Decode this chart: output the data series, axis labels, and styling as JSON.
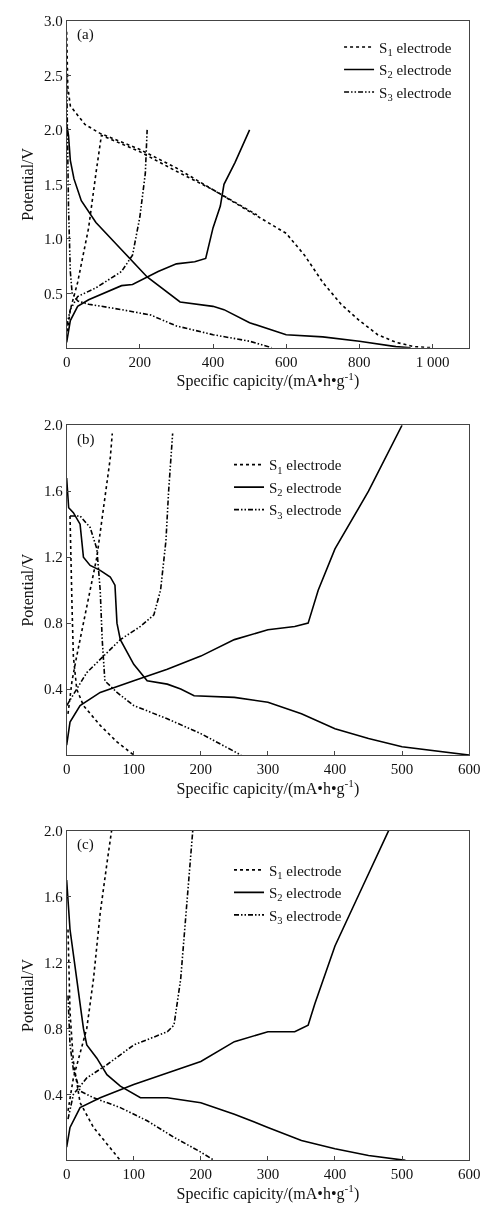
{
  "chart_data": [
    {
      "type": "line",
      "annotations": [
        "(a)"
      ],
      "xlabel": "Specific capicity/(mA•h•g$^{-1}$)",
      "ylabel": "Potential/V",
      "xlim": [
        0,
        1100
      ],
      "xticks": [
        0,
        200,
        400,
        600,
        800,
        {
          "value": 1000,
          "label": "1 000"
        }
      ],
      "ylim": [
        0,
        3.0
      ],
      "yticks": [
        {
          "value": 0.5,
          "label": "0.5"
        },
        {
          "value": 1.0,
          "label": "1.0"
        },
        {
          "value": 1.5,
          "label": "1.5"
        },
        {
          "value": 2.0,
          "label": "2.0"
        },
        {
          "value": 2.5,
          "label": "2.5"
        },
        {
          "value": 3.0,
          "label": "3.0"
        }
      ],
      "legend": "top right",
      "series": [
        {
          "name": "S$_{1}$ electrode",
          "color": "#000000",
          "line_style": "dotted",
          "x": [
            0,
            3,
            10,
            50,
            90,
            200,
            300,
            400,
            500,
            600,
            650,
            700,
            750,
            800,
            850,
            900,
            950,
            1000
          ],
          "values": [
            2.9,
            2.4,
            2.22,
            2.05,
            1.97,
            1.82,
            1.65,
            1.45,
            1.25,
            1.05,
            0.85,
            0.6,
            0.4,
            0.25,
            0.12,
            0.05,
            0.01,
            0.0
          ]
        },
        {
          "color": "#000000",
          "line_style": "dotted",
          "x": [
            2,
            10,
            30,
            60,
            80,
            95,
            200,
            300,
            400,
            520
          ],
          "values": [
            0.15,
            0.35,
            0.6,
            1.1,
            1.6,
            1.95,
            1.8,
            1.62,
            1.45,
            1.22
          ]
        },
        {
          "name": "S$_{2}$ electrode",
          "color": "#000000",
          "line_style": "solid",
          "x": [
            0,
            5,
            10,
            20,
            40,
            80,
            150,
            220,
            310,
            400,
            430,
            500,
            600,
            700,
            800,
            900,
            940
          ],
          "values": [
            2.05,
            1.95,
            1.72,
            1.55,
            1.35,
            1.15,
            0.9,
            0.65,
            0.42,
            0.38,
            0.35,
            0.23,
            0.12,
            0.1,
            0.06,
            0.01,
            0.0
          ]
        },
        {
          "color": "#000000",
          "line_style": "solid",
          "x": [
            0,
            10,
            30,
            60,
            150,
            180,
            250,
            300,
            350,
            380,
            400,
            420,
            430,
            460,
            500
          ],
          "values": [
            0.05,
            0.25,
            0.38,
            0.44,
            0.57,
            0.58,
            0.7,
            0.77,
            0.79,
            0.82,
            1.1,
            1.3,
            1.5,
            1.7,
            2.0
          ]
        },
        {
          "name": "S$_{3}$ electrode",
          "color": "#000000",
          "line_style": "dashdot",
          "x": [
            0,
            5,
            10,
            15,
            30,
            60,
            150,
            230,
            300,
            400,
            500,
            560
          ],
          "values": [
            2.5,
            1.3,
            0.7,
            0.5,
            0.43,
            0.4,
            0.35,
            0.3,
            0.2,
            0.12,
            0.06,
            0.0
          ]
        },
        {
          "color": "#000000",
          "line_style": "dashdot",
          "x": [
            0,
            10,
            30,
            80,
            150,
            180,
            200,
            215,
            220
          ],
          "values": [
            0.2,
            0.35,
            0.47,
            0.55,
            0.7,
            0.85,
            1.2,
            1.6,
            2.0
          ]
        }
      ]
    },
    {
      "type": "line",
      "annotations": [
        "(b)"
      ],
      "xlabel": "Specific capicity/(mA•h•g$^{-1}$)",
      "ylabel": "Potential/V",
      "xlim": [
        0,
        600
      ],
      "xticks": [
        0,
        100,
        200,
        300,
        400,
        500,
        600
      ],
      "ylim": [
        0,
        2.0
      ],
      "yticks": [
        0.4,
        0.8,
        1.2,
        1.6,
        {
          "value": 2.0,
          "label": "2.0"
        }
      ],
      "legend": "top",
      "series": [
        {
          "name": "S$_{1}$ electrode",
          "color": "#000000",
          "line_style": "dotted",
          "x": [
            5,
            8,
            10,
            15,
            25,
            50,
            75,
            100
          ],
          "values": [
            1.45,
            0.9,
            0.6,
            0.4,
            0.3,
            0.18,
            0.08,
            0.0
          ]
        },
        {
          "color": "#000000",
          "line_style": "dotted",
          "x": [
            2,
            8,
            15,
            30,
            45,
            55,
            65,
            68
          ],
          "values": [
            0.25,
            0.45,
            0.6,
            0.9,
            1.2,
            1.5,
            1.8,
            1.95
          ]
        },
        {
          "name": "S$_{2}$ electrode",
          "color": "#000000",
          "line_style": "solid",
          "x": [
            0,
            3,
            10,
            20,
            25,
            35,
            50,
            65,
            72,
            75,
            80,
            100,
            120,
            150,
            170,
            190,
            250,
            300,
            350,
            400,
            450,
            500,
            600
          ],
          "values": [
            1.68,
            1.5,
            1.47,
            1.4,
            1.2,
            1.15,
            1.12,
            1.08,
            1.03,
            0.8,
            0.7,
            0.55,
            0.45,
            0.43,
            0.4,
            0.36,
            0.35,
            0.32,
            0.25,
            0.16,
            0.1,
            0.05,
            0.0
          ]
        },
        {
          "color": "#000000",
          "line_style": "solid",
          "x": [
            0,
            5,
            20,
            50,
            100,
            150,
            200,
            250,
            300,
            340,
            360,
            375,
            400,
            450,
            500
          ],
          "values": [
            0.06,
            0.2,
            0.3,
            0.38,
            0.45,
            0.52,
            0.6,
            0.7,
            0.76,
            0.78,
            0.8,
            1.0,
            1.25,
            1.6,
            2.0
          ]
        },
        {
          "name": "S$_{3}$ electrode",
          "color": "#000000",
          "line_style": "dashdot",
          "x": [
            5,
            20,
            35,
            45,
            50,
            53,
            57,
            75,
            100,
            150,
            200,
            260
          ],
          "values": [
            1.45,
            1.45,
            1.38,
            1.25,
            1.0,
            0.7,
            0.45,
            0.38,
            0.3,
            0.22,
            0.13,
            0.0
          ]
        },
        {
          "color": "#000000",
          "line_style": "dashdot",
          "x": [
            0,
            15,
            30,
            55,
            80,
            110,
            130,
            140,
            148,
            152,
            158
          ],
          "values": [
            0.3,
            0.4,
            0.5,
            0.6,
            0.7,
            0.78,
            0.85,
            1.0,
            1.3,
            1.6,
            1.95
          ]
        }
      ]
    },
    {
      "type": "line",
      "annotations": [
        "(c)"
      ],
      "xlabel": "Specific capicity/(mA•h•g$^{-1}$)",
      "ylabel": "Potential/V",
      "xlim": [
        0,
        600
      ],
      "xticks": [
        0,
        100,
        200,
        300,
        400,
        500,
        600
      ],
      "ylim": [
        0,
        2.0
      ],
      "yticks": [
        0.4,
        0.8,
        1.2,
        1.6,
        {
          "value": 2.0,
          "label": "2.0"
        }
      ],
      "legend": "top",
      "series": [
        {
          "name": "S$_{1}$ electrode",
          "color": "#000000",
          "line_style": "dotted",
          "x": [
            2,
            5,
            10,
            20,
            40,
            60,
            80
          ],
          "values": [
            1.4,
            0.9,
            0.6,
            0.35,
            0.2,
            0.1,
            0.0
          ]
        },
        {
          "color": "#000000",
          "line_style": "dotted",
          "x": [
            2,
            10,
            20,
            30,
            40,
            50,
            60,
            67
          ],
          "values": [
            0.3,
            0.5,
            0.65,
            0.8,
            1.1,
            1.5,
            1.8,
            2.0
          ]
        },
        {
          "name": "S$_{2}$ electrode",
          "color": "#000000",
          "line_style": "solid",
          "x": [
            0,
            5,
            15,
            25,
            30,
            45,
            60,
            80,
            110,
            150,
            200,
            250,
            300,
            350,
            400,
            450,
            505
          ],
          "values": [
            1.7,
            1.4,
            1.1,
            0.8,
            0.7,
            0.62,
            0.52,
            0.45,
            0.38,
            0.38,
            0.35,
            0.28,
            0.2,
            0.12,
            0.07,
            0.03,
            0.0
          ]
        },
        {
          "color": "#000000",
          "line_style": "solid",
          "x": [
            0,
            5,
            20,
            50,
            100,
            150,
            200,
            250,
            300,
            340,
            360,
            370,
            400,
            440,
            480
          ],
          "values": [
            0.08,
            0.2,
            0.32,
            0.38,
            0.46,
            0.53,
            0.6,
            0.72,
            0.78,
            0.78,
            0.82,
            0.95,
            1.3,
            1.65,
            2.0
          ]
        },
        {
          "name": "S$_{3}$ electrode",
          "color": "#000000",
          "line_style": "dashdot",
          "x": [
            2,
            5,
            10,
            20,
            40,
            80,
            120,
            160,
            200,
            220
          ],
          "values": [
            1.0,
            0.7,
            0.55,
            0.42,
            0.38,
            0.32,
            0.24,
            0.14,
            0.05,
            0.0
          ]
        },
        {
          "color": "#000000",
          "line_style": "dashdot",
          "x": [
            2,
            10,
            30,
            60,
            100,
            150,
            160,
            170,
            180,
            188
          ],
          "values": [
            0.25,
            0.4,
            0.5,
            0.58,
            0.7,
            0.78,
            0.82,
            1.1,
            1.6,
            2.0
          ]
        }
      ]
    }
  ]
}
